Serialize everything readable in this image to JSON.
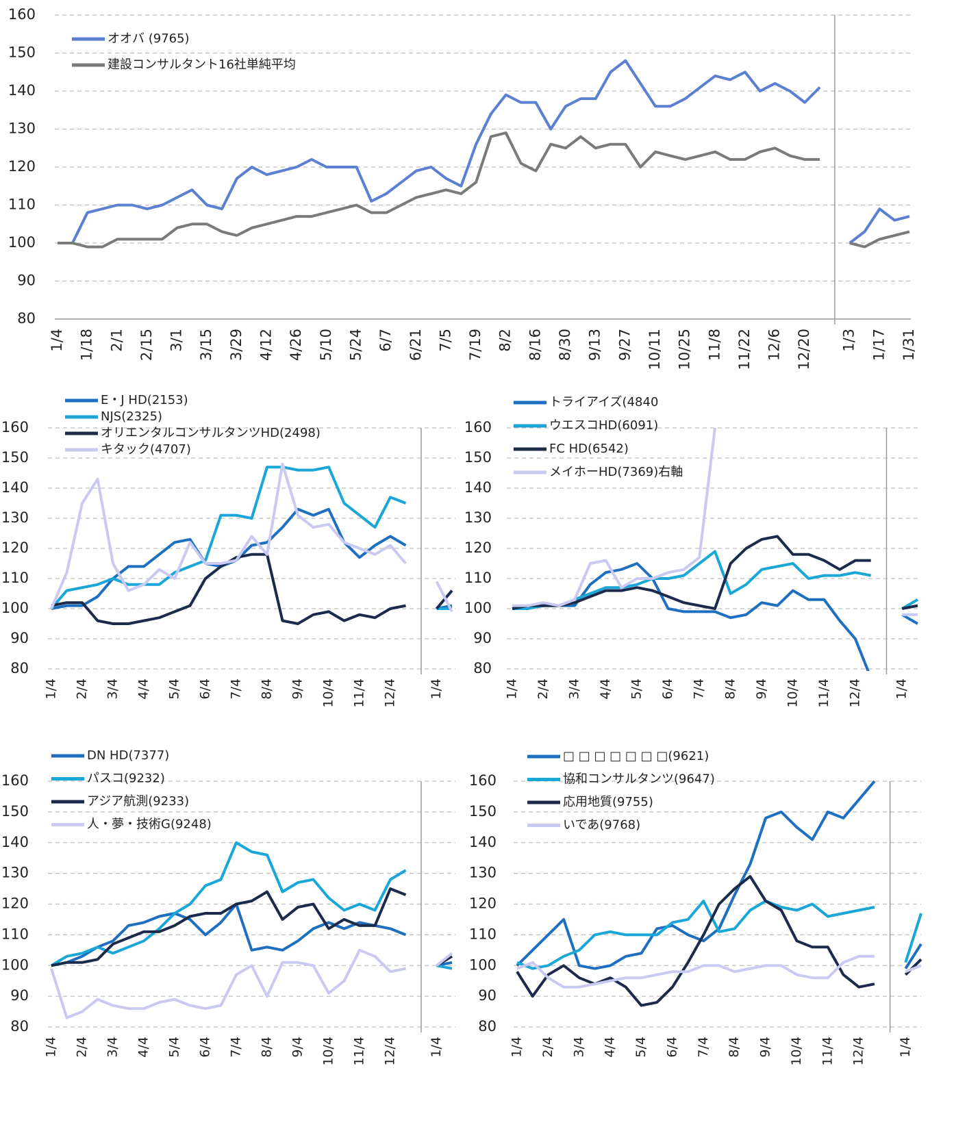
{
  "chart_data": [
    {
      "type": "line",
      "grid": true,
      "ylim": [
        80,
        160
      ],
      "yticks": [
        80,
        90,
        100,
        110,
        120,
        130,
        140,
        150,
        160
      ],
      "legend": "upper left",
      "categories": [
        "1/4",
        null,
        "1/18",
        null,
        "2/1",
        null,
        "2/15",
        null,
        "3/1",
        null,
        "3/15",
        null,
        "3/29",
        null,
        "4/12",
        null,
        "4/26",
        null,
        "5/10",
        null,
        "5/24",
        null,
        "6/7",
        null,
        "6/21",
        null,
        "7/5",
        null,
        "7/19",
        null,
        "8/2",
        null,
        "8/16",
        null,
        "8/30",
        null,
        "9/13",
        null,
        "9/27",
        null,
        "10/11",
        null,
        "10/25",
        null,
        "11/8",
        null,
        "11/22",
        null,
        "12/6",
        null,
        "12/20",
        null,
        null,
        "1/3",
        null,
        "1/17",
        null,
        "1/31"
      ],
      "series": [
        {
          "name": "オオバ (9765)",
          "color": "#5b80d1",
          "values": [
            100,
            100,
            108,
            109,
            110,
            110,
            109,
            110,
            112,
            114,
            110,
            109,
            117,
            120,
            118,
            119,
            120,
            122,
            120,
            120,
            120,
            111,
            113,
            116,
            119,
            120,
            117,
            115,
            126,
            134,
            139,
            137,
            137,
            130,
            136,
            138,
            138,
            145,
            148,
            142,
            136,
            136,
            138,
            141,
            144,
            143,
            145,
            140,
            142,
            140,
            137,
            141,
            null,
            100,
            103,
            109,
            106,
            107
          ]
        },
        {
          "name": "建設コンサルタント16社単純平均",
          "color": "#7a7a7a",
          "values": [
            100,
            100,
            99,
            99,
            101,
            101,
            101,
            101,
            104,
            105,
            105,
            103,
            102,
            104,
            105,
            106,
            107,
            107,
            108,
            109,
            110,
            108,
            108,
            110,
            112,
            113,
            114,
            113,
            116,
            128,
            129,
            121,
            119,
            126,
            125,
            128,
            125,
            126,
            126,
            120,
            124,
            123,
            122,
            123,
            124,
            122,
            122,
            124,
            125,
            123,
            122,
            122,
            null,
            100,
            99,
            101,
            102,
            103
          ]
        }
      ]
    },
    {
      "type": "line",
      "grid": true,
      "ylim": [
        80,
        160
      ],
      "yticks": [
        80,
        90,
        100,
        110,
        120,
        130,
        140,
        150,
        160
      ],
      "legend": "upper left",
      "categories": [
        "1/4",
        null,
        "2/4",
        null,
        "3/4",
        null,
        "4/4",
        null,
        "5/4",
        null,
        "6/4",
        null,
        "7/4",
        null,
        "8/4",
        null,
        "9/4",
        null,
        "10/4",
        null,
        "11/4",
        null,
        "12/4",
        null,
        null,
        "1/4",
        null
      ],
      "series": [
        {
          "name": "E・J HD(2153)",
          "color": "#1f6fc0",
          "values": [
            100,
            101,
            101,
            104,
            110,
            114,
            114,
            118,
            122,
            123,
            115,
            114,
            116,
            121,
            122,
            127,
            133,
            131,
            133,
            122,
            117,
            121,
            124,
            121,
            null,
            100,
            101
          ]
        },
        {
          "name": "NJS(2325)",
          "color": "#1aa6d6",
          "values": [
            100,
            106,
            107,
            108,
            110,
            108,
            108,
            108,
            112,
            114,
            116,
            131,
            131,
            130,
            147,
            147,
            146,
            146,
            147,
            135,
            131,
            127,
            137,
            135,
            null,
            100,
            100
          ]
        },
        {
          "name": "オリエンタルコンサルタンツHD(2498)",
          "color": "#1c2b4b",
          "values": [
            101,
            102,
            102,
            96,
            95,
            95,
            96,
            97,
            99,
            101,
            110,
            114,
            117,
            118,
            118,
            96,
            95,
            98,
            99,
            96,
            98,
            97,
            100,
            101,
            null,
            100,
            106
          ]
        },
        {
          "name": "キタック(4707)",
          "color": "#c9c9f2",
          "values": [
            100,
            112,
            135,
            143,
            115,
            106,
            108,
            113,
            110,
            122,
            115,
            115,
            116,
            124,
            118,
            148,
            131,
            127,
            128,
            122,
            120,
            118,
            121,
            115,
            null,
            109,
            99
          ]
        }
      ]
    },
    {
      "type": "line",
      "grid": true,
      "ylim": [
        80,
        160
      ],
      "yticks": [
        80,
        90,
        100,
        110,
        120,
        130,
        140,
        150,
        160
      ],
      "legend": "upper left",
      "categories": [
        "1/4",
        null,
        "2/4",
        null,
        "3/4",
        null,
        "4/4",
        null,
        "5/4",
        null,
        "6/4",
        null,
        "7/4",
        null,
        "8/4",
        null,
        "9/4",
        null,
        "10/4",
        null,
        "11/4",
        null,
        "12/4",
        null,
        null,
        "1/4",
        null
      ],
      "series": [
        {
          "name": "トライアイズ(4840",
          "color": "#1f6fc0",
          "values": [
            100,
            101,
            101,
            101,
            101,
            108,
            112,
            113,
            115,
            110,
            100,
            99,
            99,
            99,
            97,
            98,
            102,
            101,
            106,
            103,
            103,
            96,
            90,
            77,
            null,
            98,
            95
          ]
        },
        {
          "name": "ウエスコHD(6091)",
          "color": "#1aa6d6",
          "values": [
            100,
            100,
            101,
            101,
            103,
            105,
            107,
            107,
            108,
            110,
            110,
            111,
            115,
            119,
            105,
            108,
            113,
            114,
            115,
            110,
            111,
            111,
            112,
            111,
            null,
            100,
            103
          ]
        },
        {
          "name": "FC HD(6542)",
          "color": "#1c2b4b",
          "values": [
            100,
            101,
            101,
            101,
            102,
            104,
            106,
            106,
            107,
            106,
            104,
            102,
            101,
            100,
            115,
            120,
            123,
            124,
            118,
            118,
            116,
            113,
            116,
            116,
            null,
            100,
            101
          ]
        },
        {
          "name": "メイホーHD(7369)右軸",
          "color": "#c9c9f2",
          "values": [
            101,
            101,
            102,
            101,
            103,
            115,
            116,
            107,
            110,
            110,
            112,
            113,
            117,
            160,
            null,
            null,
            null,
            null,
            null,
            null,
            null,
            null,
            null,
            null,
            null,
            98,
            98
          ]
        }
      ]
    },
    {
      "type": "line",
      "grid": true,
      "ylim": [
        80,
        160
      ],
      "yticks": [
        80,
        90,
        100,
        110,
        120,
        130,
        140,
        150,
        160
      ],
      "legend": "upper left",
      "categories": [
        "1/4",
        null,
        "2/4",
        null,
        "3/4",
        null,
        "4/4",
        null,
        "5/4",
        null,
        "6/4",
        null,
        "7/4",
        null,
        "8/4",
        null,
        "9/4",
        null,
        "10/4",
        null,
        "11/4",
        null,
        "12/4",
        null,
        null,
        "1/4",
        null
      ],
      "series": [
        {
          "name": "DN HD(7377)",
          "color": "#1f6fc0",
          "values": [
            100,
            101,
            103,
            106,
            108,
            113,
            114,
            116,
            117,
            115,
            110,
            114,
            120,
            105,
            106,
            105,
            108,
            112,
            114,
            112,
            114,
            113,
            112,
            110,
            null,
            100,
            101
          ]
        },
        {
          "name": "パスコ(9232)",
          "color": "#1aa6d6",
          "values": [
            100,
            103,
            104,
            106,
            104,
            106,
            108,
            112,
            117,
            120,
            126,
            128,
            140,
            137,
            136,
            124,
            127,
            128,
            122,
            118,
            120,
            118,
            128,
            131,
            null,
            100,
            99
          ]
        },
        {
          "name": "アジア航測(9233)",
          "color": "#1c2b4b",
          "values": [
            100,
            101,
            101,
            102,
            107,
            109,
            111,
            111,
            113,
            116,
            117,
            117,
            120,
            121,
            124,
            115,
            119,
            120,
            112,
            115,
            113,
            113,
            125,
            123,
            null,
            100,
            103
          ]
        },
        {
          "name": "人・夢・技術G(9248)",
          "color": "#c9c9f2",
          "values": [
            99,
            83,
            85,
            89,
            87,
            86,
            86,
            88,
            89,
            87,
            86,
            87,
            97,
            100,
            90,
            101,
            101,
            100,
            91,
            95,
            105,
            103,
            98,
            99,
            null,
            100,
            104
          ]
        }
      ]
    },
    {
      "type": "line",
      "grid": true,
      "ylim": [
        80,
        160
      ],
      "yticks": [
        80,
        90,
        100,
        110,
        120,
        130,
        140,
        150,
        160
      ],
      "legend": "upper left",
      "categories": [
        "1/4",
        null,
        "2/4",
        null,
        "3/4",
        null,
        "4/4",
        null,
        "5/4",
        null,
        "6/4",
        null,
        "7/4",
        null,
        "8/4",
        null,
        "9/4",
        null,
        "10/4",
        null,
        "11/4",
        null,
        "12/4",
        null,
        null,
        "1/4",
        null
      ],
      "series": [
        {
          "name": "□ □ □ □ □ □ □(9621)",
          "color": "#1f6fc0",
          "values": [
            100,
            105,
            110,
            115,
            100,
            99,
            100,
            103,
            104,
            112,
            113,
            110,
            108,
            112,
            123,
            133,
            148,
            150,
            145,
            141,
            150,
            148,
            154,
            160,
            null,
            99,
            107
          ]
        },
        {
          "name": "協和コンサルタンツ(9647)",
          "color": "#1aa6d6",
          "values": [
            101,
            99,
            100,
            103,
            105,
            110,
            111,
            110,
            110,
            110,
            114,
            115,
            121,
            111,
            112,
            118,
            121,
            119,
            118,
            120,
            116,
            117,
            118,
            119,
            null,
            101,
            117
          ]
        },
        {
          "name": "応用地質(9755)",
          "color": "#1c2b4b",
          "values": [
            98,
            90,
            97,
            100,
            96,
            94,
            96,
            93,
            87,
            88,
            93,
            101,
            110,
            120,
            125,
            129,
            121,
            118,
            108,
            106,
            106,
            97,
            93,
            94,
            null,
            97,
            102
          ]
        },
        {
          "name": "いであ(9768)",
          "color": "#c9c9f2",
          "values": [
            99,
            101,
            96,
            93,
            93,
            94,
            95,
            96,
            96,
            97,
            98,
            98,
            100,
            100,
            98,
            99,
            100,
            100,
            97,
            96,
            96,
            101,
            103,
            103,
            null,
            98,
            100
          ]
        }
      ]
    }
  ]
}
